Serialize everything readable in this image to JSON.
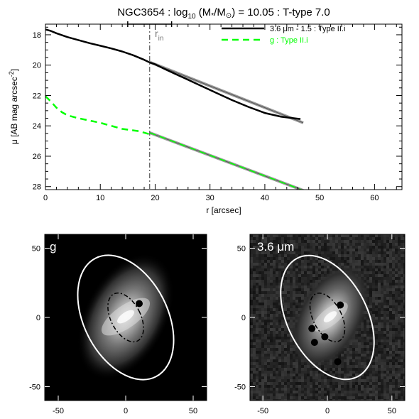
{
  "chart_data": [
    {
      "type": "line",
      "title": "NGC3654 : log",
      "title_parts": {
        "prefix": "NGC3654 : log",
        "subscript": "10",
        "mass_open": " (M",
        "mass_star": "*",
        "mass_slash": "/M",
        "mass_sun": "⊙",
        "suffix": ") = 10.05 : T-type 7.0"
      },
      "xlabel": "r [arcsec]",
      "ylabel": "μ [AB mag arcsec",
      "ylabel_sup": "-2",
      "ylabel_close": "]",
      "xlim": [
        0,
        65
      ],
      "ylim": [
        28.2,
        17.3
      ],
      "xticks": [
        0,
        10,
        20,
        30,
        40,
        50,
        60
      ],
      "yticks": [
        18,
        20,
        22,
        24,
        26,
        28
      ],
      "legend_position": "top-right",
      "series": [
        {
          "name": "3.6 μm - 1.5 : Type II.i",
          "color": "#000000",
          "dash": "solid",
          "x": [
            0,
            1,
            2,
            4,
            6,
            8,
            10,
            12,
            14,
            16,
            18,
            19,
            20,
            22,
            25,
            28,
            31,
            34,
            37,
            40,
            43,
            46.5
          ],
          "y": [
            17.65,
            17.75,
            17.9,
            18.15,
            18.35,
            18.55,
            18.72,
            18.9,
            19.1,
            19.35,
            19.65,
            19.82,
            19.95,
            20.3,
            20.8,
            21.3,
            21.8,
            22.3,
            22.75,
            23.15,
            23.4,
            23.55
          ]
        },
        {
          "name": "g : Type II.i",
          "color": "#00ff00",
          "dash": "dashed",
          "x": [
            0,
            1,
            2,
            3,
            4,
            6,
            8,
            10,
            12,
            14,
            16,
            17,
            18,
            19
          ],
          "y": [
            22.05,
            22.4,
            22.8,
            23.1,
            23.3,
            23.5,
            23.65,
            23.8,
            24.0,
            24.2,
            24.3,
            24.35,
            24.45,
            24.55
          ]
        }
      ],
      "fits": [
        {
          "series": "3.6 μm - 1.5 : Type II.i",
          "color": "#555555",
          "x": [
            19,
            47
          ],
          "y": [
            19.8,
            23.8
          ]
        },
        {
          "series": "g : Type II.i",
          "color": "#555555",
          "x": [
            19,
            47
          ],
          "y": [
            24.45,
            28.25
          ]
        }
      ],
      "annotations": {
        "r_in_value": 19,
        "r_in_label": "r",
        "r_in_sub": "in",
        "r_in_error": [
          15,
          23
        ]
      }
    },
    {
      "type": "heatmap",
      "label": "g",
      "xlim": [
        -60,
        60
      ],
      "ylim": [
        -60,
        60
      ],
      "xticks": [
        -50,
        0,
        50
      ],
      "yticks": [
        -50,
        0,
        50
      ],
      "outer_ellipse": {
        "cx": 0,
        "cy": 0,
        "a": 48,
        "b": 31,
        "pa_deg": -27
      },
      "inner_ellipse": {
        "cx": 0,
        "cy": 0,
        "a": 19,
        "b": 11,
        "pa_deg": -27
      },
      "masked_sources": [
        [
          10,
          10
        ]
      ]
    },
    {
      "type": "heatmap",
      "label": "3.6 μm",
      "xlim": [
        -60,
        60
      ],
      "ylim": [
        -60,
        60
      ],
      "xticks": [
        -50,
        0,
        50
      ],
      "yticks": [
        -50,
        0,
        50
      ],
      "outer_ellipse": {
        "cx": 0,
        "cy": 0,
        "a": 48,
        "b": 31,
        "pa_deg": -27
      },
      "inner_ellipse": {
        "cx": 0,
        "cy": 0,
        "a": 19,
        "b": 11,
        "pa_deg": -27
      },
      "masked_sources": [
        [
          10,
          9
        ],
        [
          -12,
          -8
        ],
        [
          -10,
          -18
        ],
        [
          -2,
          -14
        ],
        [
          8,
          -32
        ]
      ]
    }
  ]
}
